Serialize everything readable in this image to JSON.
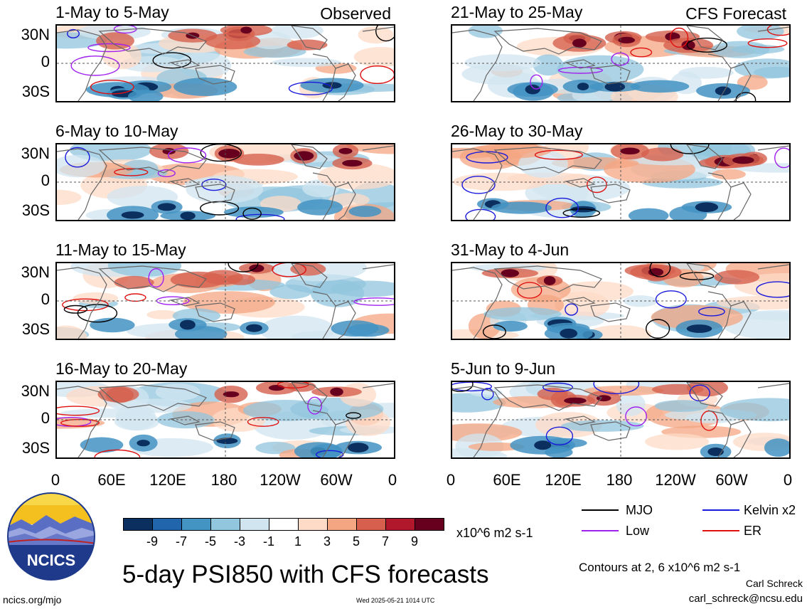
{
  "panels": [
    {
      "title": "1-May to 5-May",
      "source": "Observed"
    },
    {
      "title": "21-May to 25-May",
      "source": "CFS Forecast"
    },
    {
      "title": "6-May to 10-May",
      "source": ""
    },
    {
      "title": "26-May to 30-May",
      "source": ""
    },
    {
      "title": "11-May to 15-May",
      "source": ""
    },
    {
      "title": "31-May to 4-Jun",
      "source": ""
    },
    {
      "title": "16-May to 20-May",
      "source": ""
    },
    {
      "title": "5-Jun to 9-Jun",
      "source": ""
    }
  ],
  "lat_labels": [
    "30N",
    "0",
    "30S"
  ],
  "lon_labels": [
    "0",
    "60E",
    "120E",
    "180",
    "120W",
    "60W",
    "0"
  ],
  "colorbar": {
    "colors": [
      "#0b2f5e",
      "#2166ac",
      "#4393c3",
      "#92c5de",
      "#d1e5f0",
      "#ffffff",
      "#fddbc7",
      "#f4a582",
      "#d6604d",
      "#b2182b",
      "#67001f"
    ],
    "labels": [
      "-9",
      "-7",
      "-5",
      "-3",
      "-1",
      "1",
      "3",
      "5",
      "7",
      "9"
    ],
    "units": "x10^6 m2 s-1"
  },
  "legend": [
    {
      "label": "MJO",
      "color": "#000000"
    },
    {
      "label": "Kelvin x2",
      "color": "#1a1adc"
    },
    {
      "label": "Low",
      "color": "#a020f0"
    },
    {
      "label": "ER",
      "color": "#e01010"
    }
  ],
  "main_title": "5-day PSI850 with CFS forecasts",
  "contours_note": "Contours at 2, 6 x10^6 m2 s-1",
  "author": "Carl Schreck",
  "email": "carl_schreck@ncsu.edu",
  "site": "ncics.org/mjo",
  "timestamp": "Wed 2025-05-21 1014 UTC",
  "logo_text": "NCICS"
}
